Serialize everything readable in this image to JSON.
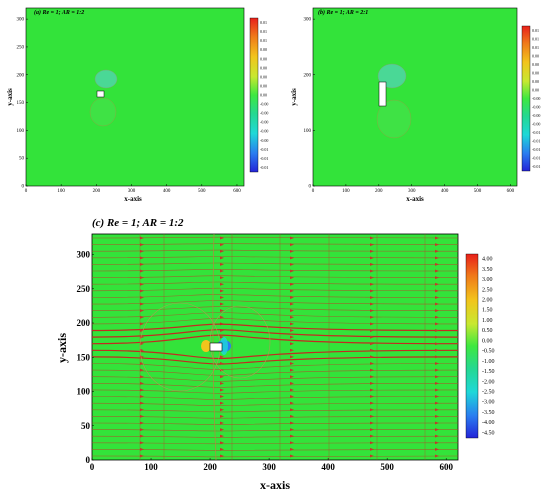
{
  "chart_data": [
    {
      "type": "heatmap",
      "title": "(a) Re = 1; AR = 1:2",
      "xlabel": "x-axis",
      "ylabel": "y-axis",
      "xlim": [
        0,
        620
      ],
      "ylim": [
        0,
        320
      ],
      "x_ticks": [
        "0",
        "100",
        "200",
        "300",
        "400",
        "500",
        "600"
      ],
      "y_ticks": [
        "0",
        "50",
        "100",
        "150",
        "200",
        "250",
        "300"
      ],
      "colorbar_labels": [
        "0.01",
        "0.01",
        "0.01",
        "0.00",
        "0.00",
        "0.00",
        "0.00",
        "0.00",
        "0.00",
        "-0.00",
        "-0.00",
        "-0.00",
        "-0.00",
        "-0.00",
        "-0.01",
        "-0.01",
        "-0.01"
      ],
      "obstacle": {
        "x": [
          200,
          222
        ],
        "y": [
          165,
          178
        ]
      }
    },
    {
      "type": "heatmap",
      "title": "(b) Re = 1; AR = 2:1",
      "xlabel": "x-axis",
      "ylabel": "y-axis",
      "xlim": [
        0,
        620
      ],
      "ylim": [
        0,
        320
      ],
      "x_ticks": [
        "0",
        "100",
        "200",
        "300",
        "400",
        "500",
        "600"
      ],
      "y_ticks": [
        "0",
        "100",
        "200",
        "300"
      ],
      "colorbar_labels": [
        "0.01",
        "0.01",
        "0.01",
        "0.00",
        "0.00",
        "0.00",
        "0.00",
        "0.00",
        "-0.00",
        "-0.00",
        "-0.00",
        "-0.00",
        "-0.01",
        "-0.01",
        "-0.01",
        "-0.01",
        "-0.01"
      ],
      "obstacle": {
        "x": [
          200,
          212
        ],
        "y": [
          160,
          205
        ]
      }
    },
    {
      "type": "heatmap",
      "title": "(c) Re = 1; AR = 1:2",
      "xlabel": "x-axis",
      "ylabel": "y-axis",
      "xlim": [
        0,
        620
      ],
      "ylim": [
        0,
        330
      ],
      "x_ticks": [
        "0",
        "100",
        "200",
        "300",
        "400",
        "500",
        "600"
      ],
      "y_ticks": [
        "0",
        "50",
        "100",
        "150",
        "200",
        "250",
        "300"
      ],
      "colorbar_labels": [
        "4.00",
        "3.50",
        "3.00",
        "2.50",
        "2.00",
        "1.50",
        "1.00",
        "0.50",
        "0.00",
        "-0.50",
        "-1.00",
        "-1.50",
        "-2.00",
        "-2.50",
        "-3.00",
        "-3.50",
        "-4.00",
        "-4.50"
      ],
      "obstacle": {
        "x": [
          200,
          222
        ],
        "y": [
          160,
          173
        ]
      },
      "streamlines": true
    }
  ]
}
